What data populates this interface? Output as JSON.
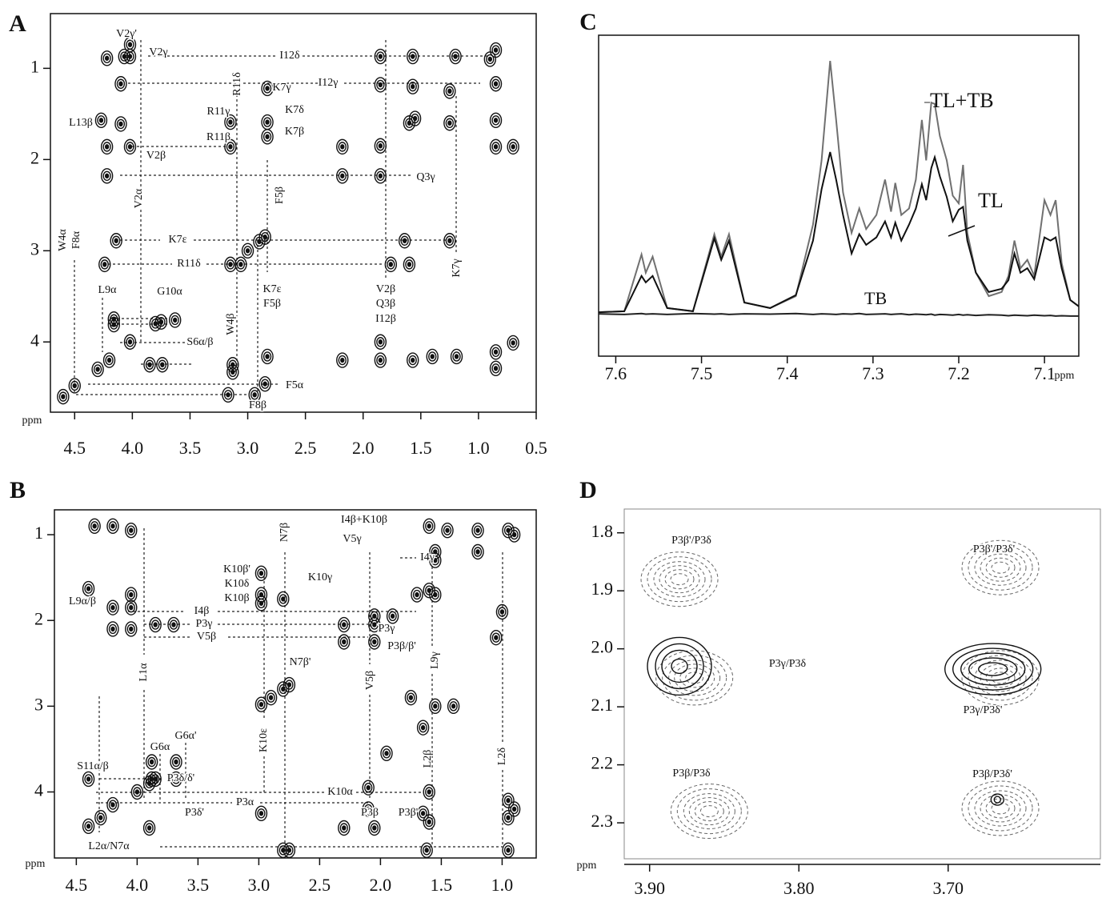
{
  "chart_data": [
    {
      "type": "contour",
      "panel": "A",
      "axis_label": "ppm",
      "xlim": [
        4.71,
        0.5
      ],
      "ylim": [
        0.4,
        4.77
      ],
      "xticks": [
        4.5,
        {
          "value": 4.0,
          "label": "4.0"
        },
        3.5,
        {
          "value": 3.0,
          "label": "3.0"
        },
        2.5,
        {
          "value": 2.0,
          "label": "2.0"
        },
        1.5,
        {
          "value": 1.0,
          "label": "1.0"
        },
        0.5
      ],
      "yticks": [
        1,
        2,
        3,
        4
      ],
      "series": [
        {
          "color": "#111111",
          "dashed": false,
          "x": [
            4.3,
            4.2,
            3.8,
            3.75,
            3.15,
            3.0,
            2.9,
            2.85,
            2.18,
            1.85,
            1.6,
            1.55,
            1.25,
            0.9,
            0.85,
            4.22,
            4.07,
            4.02,
            4.02,
            4.1,
            4.27,
            4.1,
            4.22,
            4.02,
            4.22,
            3.15,
            3.15,
            2.83,
            2.83,
            2.83,
            4.14,
            4.24,
            3.06,
            4.16,
            4.16,
            4.02,
            3.63,
            3.74,
            3.85,
            3.13,
            3.13,
            3.17,
            2.94,
            2.83,
            2.85,
            2.18,
            1.85,
            1.85,
            1.57,
            1.4,
            1.19,
            0.85,
            0.85,
            0.7,
            1.64,
            1.6,
            1.76,
            1.25,
            2.18,
            1.85,
            1.85,
            1.57,
            1.2,
            1.85,
            1.57,
            0.85,
            0.85,
            0.85,
            0.7,
            1.25,
            4.6,
            4.5
          ],
          "y": [
            4.3,
            4.2,
            3.8,
            3.78,
            3.15,
            3.0,
            2.9,
            2.85,
            2.18,
            1.85,
            1.6,
            1.55,
            1.25,
            0.9,
            0.8,
            0.89,
            0.87,
            0.74,
            0.87,
            1.17,
            1.57,
            1.61,
            1.86,
            1.86,
            2.18,
            1.59,
            1.86,
            1.22,
            1.59,
            1.75,
            2.89,
            3.15,
            3.15,
            3.75,
            3.81,
            4.0,
            3.76,
            4.25,
            4.25,
            4.25,
            4.33,
            4.58,
            4.58,
            4.16,
            4.46,
            4.2,
            4.2,
            4.0,
            4.2,
            4.16,
            4.16,
            4.11,
            4.29,
            4.01,
            2.89,
            3.15,
            3.15,
            2.89,
            1.86,
            2.18,
            0.87,
            0.87,
            0.87,
            1.18,
            1.2,
            1.17,
            1.57,
            1.86,
            1.86,
            1.6,
            4.6,
            4.48
          ]
        }
      ],
      "annotations": [
        "V2γ'",
        "V2γ",
        "I12δ",
        "R11δ",
        "K7γ",
        "I12γ",
        "R11γ",
        "K7δ",
        "K7β",
        "L13β",
        "R11β",
        "V2β",
        "Q3γ",
        "F5β",
        "V2α",
        "K7ε",
        "W4α",
        "F8α",
        "R11δ",
        "L9α",
        "G10α",
        "K7ε",
        "F5β",
        "V2β",
        "Q3β",
        "I12β",
        "K7γ",
        "S6α/β",
        "W4β",
        "F5α",
        "F8β"
      ]
    },
    {
      "type": "contour",
      "panel": "B",
      "axis_label": "ppm",
      "xlim": [
        4.68,
        0.72
      ],
      "ylim": [
        0.71,
        4.77
      ],
      "xticks": [
        4.5,
        {
          "value": 4.0,
          "label": "4.0"
        },
        3.5,
        {
          "value": 3.0,
          "label": "3.0"
        },
        2.5,
        {
          "value": 2.0,
          "label": "2.0"
        },
        1.5,
        {
          "value": 1.0,
          "label": "1.0"
        }
      ],
      "yticks": [
        1,
        2,
        3,
        4
      ],
      "series": [
        {
          "color": "#111111",
          "dashed": false,
          "x": [
            4.4,
            4.3,
            4.2,
            4.0,
            3.9,
            3.85,
            2.98,
            2.9,
            2.8,
            2.75,
            2.05,
            1.9,
            1.7,
            1.6,
            1.55,
            0.95,
            0.9,
            4.35,
            4.2,
            4.05,
            4.4,
            4.05,
            4.2,
            4.05,
            3.85,
            3.7,
            4.2,
            4.05,
            2.98,
            2.98,
            2.8,
            2.98,
            2.3,
            2.3,
            2.05,
            2.05,
            1.6,
            1.55,
            1.2,
            1.2,
            1.45,
            3.88,
            3.68,
            3.88,
            3.68,
            3.9,
            4.4,
            2.98,
            2.3,
            2.05,
            1.6,
            1.65,
            0.95,
            0.95,
            0.9,
            2.8,
            2.75,
            1.62,
            0.95,
            1.75,
            1.55,
            1.4,
            2.1,
            2.1,
            1.6,
            1.65,
            1.95,
            1.0,
            1.05,
            1.55
          ],
          "y": [
            4.4,
            4.3,
            4.15,
            4.0,
            3.9,
            3.85,
            2.98,
            2.9,
            2.8,
            2.75,
            2.05,
            1.95,
            1.7,
            1.65,
            1.7,
            0.95,
            1.0,
            0.9,
            0.9,
            0.95,
            1.63,
            1.7,
            1.85,
            1.85,
            2.05,
            2.05,
            2.1,
            2.1,
            1.45,
            1.7,
            1.75,
            1.8,
            2.05,
            2.25,
            2.25,
            1.95,
            0.9,
            1.3,
            0.95,
            1.2,
            0.95,
            3.65,
            3.65,
            3.85,
            3.85,
            4.42,
            3.85,
            4.25,
            4.42,
            4.42,
            4.35,
            4.25,
            4.1,
            4.3,
            4.2,
            4.68,
            4.68,
            4.68,
            4.68,
            2.9,
            3.0,
            3.0,
            3.95,
            4.2,
            4.0,
            3.25,
            3.55,
            1.9,
            2.2,
            1.2
          ]
        }
      ],
      "annotations": [
        "I4β+K10β",
        "V5γ",
        "N7β",
        "I4γ",
        "K10β'",
        "K10δ",
        "K10γ",
        "K10β",
        "L9α/β",
        "I4β",
        "P3γ",
        "V5β",
        "P3γ",
        "P3β/β'",
        "L1α",
        "V5β",
        "L9γ",
        "N7β'",
        "K10ε",
        "L2β",
        "L2δ",
        "G6α'",
        "G6α",
        "S11α/β",
        "P3δ/δ'",
        "K10α",
        "P3α",
        "P3δ'",
        "P3β",
        "P3β'",
        "L2α/N7α"
      ]
    },
    {
      "type": "line",
      "panel": "C",
      "axis_label": "ppm",
      "xlim": [
        7.62,
        7.06
      ],
      "ylim": [
        0,
        100
      ],
      "xticks": [
        7.6,
        7.5,
        7.4,
        7.3,
        7.2,
        7.1
      ],
      "x": [
        7.62,
        7.59,
        7.57,
        7.565,
        7.557,
        7.54,
        7.51,
        7.485,
        7.477,
        7.468,
        7.45,
        7.42,
        7.39,
        7.37,
        7.36,
        7.35,
        7.343,
        7.335,
        7.325,
        7.316,
        7.308,
        7.296,
        7.286,
        7.279,
        7.274,
        7.267,
        7.258,
        7.25,
        7.243,
        7.238,
        7.232,
        7.228,
        7.222,
        7.214,
        7.207,
        7.2,
        7.195,
        7.19,
        7.18,
        7.165,
        7.15,
        7.142,
        7.135,
        7.128,
        7.12,
        7.112,
        7.1,
        7.093,
        7.087,
        7.08,
        7.07,
        7.06
      ],
      "series": [
        {
          "name": "TL+TB",
          "color": "#707070",
          "values": [
            13.7,
            14,
            31.7,
            26,
            31,
            15,
            14,
            38,
            31,
            38,
            16.7,
            15,
            18.7,
            41,
            61,
            92,
            73.6,
            51,
            38.4,
            46,
            39.6,
            44,
            55,
            45,
            54,
            44,
            46,
            55,
            73.6,
            61,
            79,
            78.6,
            68.6,
            61,
            50,
            47.6,
            59.6,
            38.4,
            26,
            18.7,
            20,
            25,
            36,
            27.4,
            30,
            25,
            48.6,
            44,
            48.6,
            29,
            17.5,
            15.5
          ]
        },
        {
          "name": "TL",
          "color": "#111111",
          "values": [
            13.7,
            14,
            25,
            23,
            25,
            15,
            14,
            36.7,
            30,
            36,
            16.7,
            15,
            19,
            36,
            52,
            63.6,
            55,
            44,
            32,
            38,
            34.7,
            37,
            42,
            37,
            41.6,
            36,
            41,
            46,
            53.6,
            48.6,
            58.6,
            62,
            56,
            49.6,
            42,
            45.6,
            46.5,
            36,
            26,
            20,
            21,
            23.7,
            32,
            26,
            27.4,
            24,
            37,
            36,
            37,
            27.4,
            17.5,
            15.5
          ]
        },
        {
          "name": "TB",
          "color": "#222222",
          "values": [
            13.2,
            13.0,
            13.3,
            13.1,
            13.2,
            13.0,
            13.3,
            13.1,
            13.2,
            13.0,
            13.2,
            13.1,
            13.3,
            13.0,
            13.2,
            13.1,
            13.0,
            13.2,
            13.1,
            13.3,
            13.0,
            13.1,
            13.2,
            13.0,
            13.1,
            13.2,
            12.9,
            13.1,
            13.0,
            12.9,
            13.1,
            12.8,
            13.0,
            12.9,
            12.8,
            13.0,
            12.8,
            12.9,
            12.7,
            12.9,
            12.8,
            12.6,
            12.8,
            12.7,
            12.6,
            12.8,
            12.6,
            12.7,
            12.5,
            12.6,
            12.5,
            12.5
          ]
        }
      ]
    },
    {
      "type": "contour",
      "panel": "D",
      "axis_label": "ppm",
      "xlim": [
        3.917,
        3.598
      ],
      "ylim": [
        1.759,
        2.362
      ],
      "xticks": [
        {
          "value": 3.9,
          "label": "3.90"
        },
        {
          "value": 3.8,
          "label": "3.80"
        },
        {
          "value": 3.7,
          "label": "3.70"
        }
      ],
      "yticks": [
        1.8,
        1.9,
        {
          "value": 2.0,
          "label": "2.0"
        },
        2.1,
        2.2,
        2.3
      ],
      "series": [
        {
          "color": "#666666",
          "dashed": true,
          "x": [
            3.88,
            3.665,
            3.87,
            3.665,
            3.86,
            3.665
          ],
          "y": [
            1.88,
            1.86,
            2.05,
            2.05,
            2.28,
            2.275
          ]
        },
        {
          "color": "#111111",
          "dashed": false,
          "x": [
            3.88,
            3.67,
            3.667
          ],
          "y": [
            2.03,
            2.035,
            2.26
          ]
        }
      ],
      "annotations": [
        "P3β'/P3δ",
        "P3β'/P3δ'",
        "P3γ/P3δ",
        "P3γ/P3δ'",
        "P3β/P3δ",
        "P3β/P3δ'"
      ]
    }
  ]
}
